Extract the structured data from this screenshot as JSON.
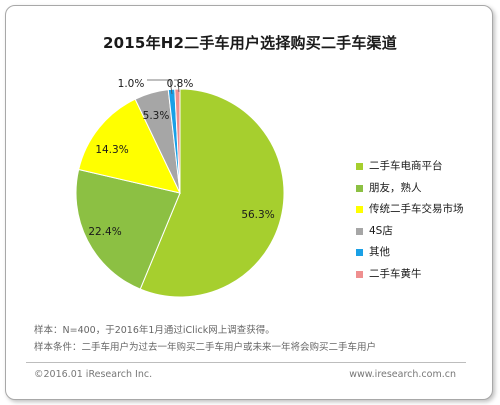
{
  "chart_data": {
    "type": "pie",
    "title": "2015年H2二手车用户选择购买二手车渠道",
    "categories": [
      "二手车电商平台",
      "朋友，熟人",
      "传统二手车交易市场",
      "4S店",
      "其他",
      "二手车黄牛"
    ],
    "values": [
      56.3,
      22.4,
      14.3,
      5.3,
      1.0,
      0.8
    ],
    "value_labels": [
      "56.3%",
      "22.4%",
      "14.3%",
      "5.3%",
      "1.0%",
      "0.8%"
    ],
    "colors": [
      "#a6cf2e",
      "#8cc043",
      "#ffff00",
      "#a6a6a6",
      "#1aa0e6",
      "#ef8f8f"
    ],
    "legend_position": "right"
  },
  "notes": {
    "sample": "样本：N=400，于2016年1月通过iClick网上调查获得。",
    "condition": "样本条件：二手车用户为过去一年购买二手车用户或未来一年将会购买二手车用户"
  },
  "footer": {
    "copyright": "©2016.01 iResearch Inc.",
    "website": "www.iresearch.com.cn"
  }
}
